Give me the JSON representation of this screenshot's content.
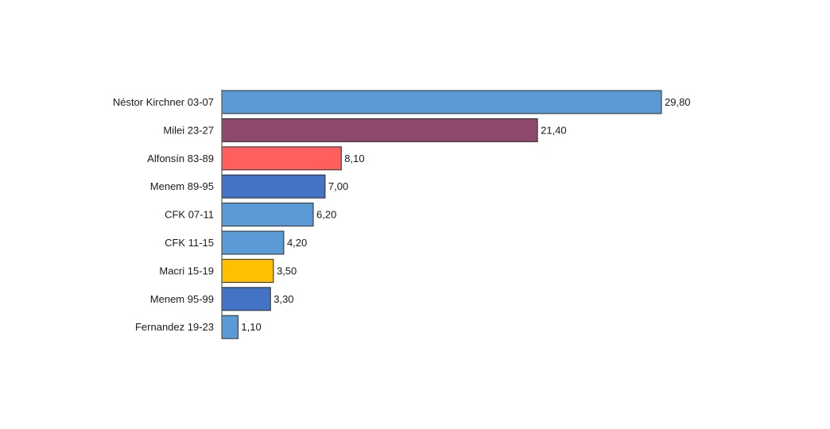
{
  "chart_data": {
    "type": "bar",
    "orientation": "horizontal",
    "title": "",
    "xlabel": "",
    "ylabel": "",
    "categories": [
      "Néstor Kirchner 03-07",
      "Milei 23-27",
      "Alfonsín 83-89",
      "Menem 89-95",
      "CFK 07-11",
      "CFK 11-15",
      "Macri 15-19",
      "Menem 95-99",
      "Fernandez 19-23"
    ],
    "values": [
      29.8,
      21.4,
      8.1,
      7.0,
      6.2,
      4.2,
      3.5,
      3.3,
      1.1
    ],
    "value_labels": [
      "29,80",
      "21,40",
      "8,10",
      "7,00",
      "6,20",
      "4,20",
      "3,50",
      "3,30",
      "1,10"
    ],
    "colors": [
      "#5b9bd5",
      "#8e4a6e",
      "#ff5f5f",
      "#4472c4",
      "#5b9bd5",
      "#5b9bd5",
      "#ffc000",
      "#4472c4",
      "#5b9bd5"
    ],
    "xlim": [
      0,
      29.8
    ],
    "grid": false,
    "legend": "none"
  }
}
